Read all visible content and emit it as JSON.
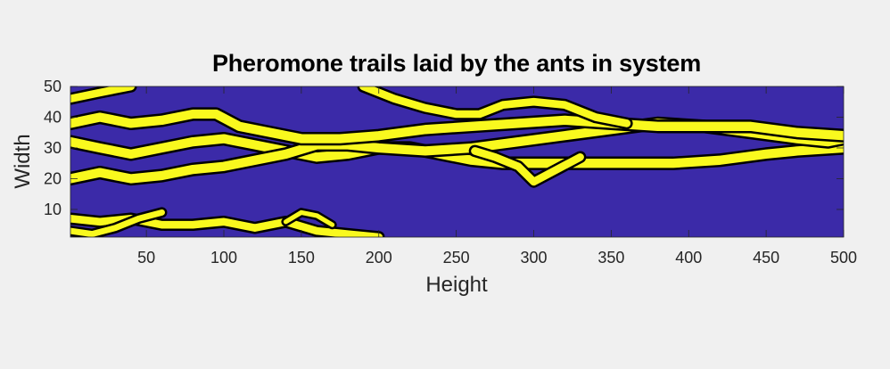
{
  "chart_data": {
    "type": "heatmap",
    "title": "Pheromone trails laid by the ants in system",
    "xlabel": "Height",
    "ylabel": "Width",
    "xlim": [
      1,
      500
    ],
    "ylim": [
      1,
      50
    ],
    "xticks": [
      50,
      100,
      150,
      200,
      250,
      300,
      350,
      400,
      450,
      500
    ],
    "yticks": [
      10,
      20,
      30,
      40,
      50
    ],
    "colors": {
      "background": "#3b2aa8",
      "trail": "#f9f91e",
      "contour": "#000000",
      "figure": "#f0f0f0"
    },
    "trails": [
      {
        "width": 3.0,
        "points": [
          [
            1,
            32
          ],
          [
            20,
            30
          ],
          [
            40,
            28
          ],
          [
            60,
            30
          ],
          [
            80,
            32
          ],
          [
            100,
            33
          ],
          [
            120,
            31
          ],
          [
            140,
            29
          ],
          [
            160,
            27
          ],
          [
            180,
            28
          ],
          [
            200,
            30
          ],
          [
            220,
            30
          ],
          [
            240,
            28
          ],
          [
            260,
            26
          ],
          [
            280,
            25
          ],
          [
            300,
            25
          ],
          [
            330,
            25
          ],
          [
            360,
            25
          ],
          [
            390,
            25
          ],
          [
            420,
            26
          ],
          [
            450,
            28
          ],
          [
            470,
            29
          ],
          [
            500,
            30
          ]
        ]
      },
      {
        "width": 3.0,
        "points": [
          [
            1,
            20
          ],
          [
            20,
            22
          ],
          [
            40,
            20
          ],
          [
            60,
            21
          ],
          [
            80,
            23
          ],
          [
            100,
            24
          ],
          [
            120,
            26
          ],
          [
            140,
            28
          ],
          [
            160,
            31
          ],
          [
            180,
            31
          ],
          [
            200,
            30
          ],
          [
            230,
            29
          ],
          [
            260,
            30
          ],
          [
            290,
            32
          ],
          [
            320,
            34
          ],
          [
            350,
            36
          ],
          [
            380,
            38
          ],
          [
            410,
            37
          ],
          [
            440,
            35
          ],
          [
            470,
            33
          ],
          [
            490,
            32
          ],
          [
            500,
            33
          ]
        ]
      },
      {
        "width": 3.0,
        "points": [
          [
            1,
            38
          ],
          [
            20,
            40
          ],
          [
            40,
            38
          ],
          [
            60,
            39
          ],
          [
            80,
            41
          ],
          [
            95,
            41
          ],
          [
            110,
            37
          ],
          [
            130,
            35
          ],
          [
            150,
            33
          ],
          [
            175,
            33
          ],
          [
            200,
            34
          ],
          [
            230,
            36
          ],
          [
            260,
            37
          ],
          [
            290,
            38
          ],
          [
            320,
            39
          ],
          [
            350,
            38
          ],
          [
            380,
            37
          ],
          [
            410,
            37
          ],
          [
            440,
            37
          ],
          [
            470,
            35
          ],
          [
            500,
            34
          ]
        ]
      },
      {
        "width": 2.5,
        "points": [
          [
            1,
            46
          ],
          [
            20,
            48
          ],
          [
            40,
            50
          ]
        ]
      },
      {
        "width": 2.5,
        "points": [
          [
            190,
            50
          ],
          [
            210,
            46
          ],
          [
            230,
            43
          ],
          [
            250,
            41
          ],
          [
            265,
            41
          ],
          [
            280,
            44
          ],
          [
            300,
            45
          ],
          [
            320,
            44
          ],
          [
            340,
            40
          ],
          [
            360,
            38
          ]
        ]
      },
      {
        "width": 2.5,
        "points": [
          [
            262,
            29
          ],
          [
            275,
            27
          ],
          [
            290,
            24
          ],
          [
            300,
            19
          ],
          [
            315,
            23
          ],
          [
            330,
            27
          ]
        ]
      },
      {
        "width": 2.5,
        "points": [
          [
            1,
            7
          ],
          [
            20,
            6
          ],
          [
            40,
            7
          ],
          [
            60,
            5
          ],
          [
            80,
            5
          ],
          [
            100,
            6
          ],
          [
            120,
            4
          ],
          [
            140,
            6
          ],
          [
            160,
            3
          ],
          [
            180,
            2
          ],
          [
            200,
            1
          ]
        ]
      },
      {
        "width": 2.0,
        "points": [
          [
            1,
            3
          ],
          [
            15,
            2
          ],
          [
            30,
            4
          ],
          [
            45,
            7
          ],
          [
            60,
            9
          ]
        ]
      },
      {
        "width": 1.5,
        "points": [
          [
            140,
            6
          ],
          [
            150,
            9
          ],
          [
            160,
            8
          ],
          [
            170,
            5
          ]
        ]
      }
    ]
  }
}
